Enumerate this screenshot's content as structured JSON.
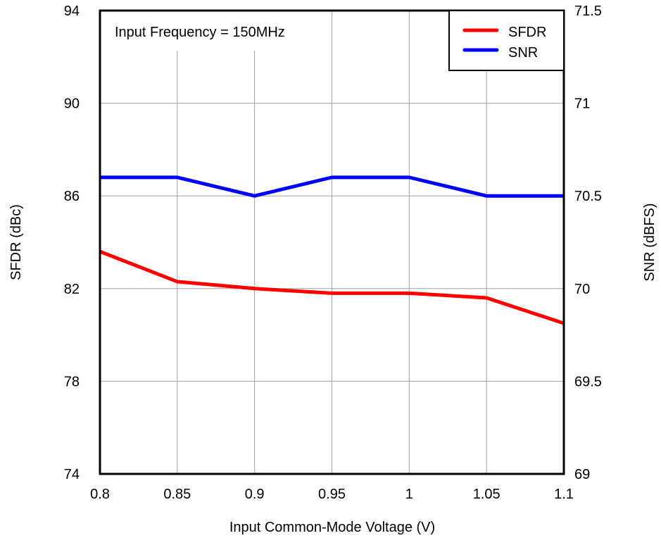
{
  "chart_data": {
    "type": "line",
    "title": "",
    "annotation": "Input Frequency = 150MHz",
    "xlabel": "Input Common-Mode Voltage (V)",
    "ylabel_left": "SFDR (dBc)",
    "ylabel_right": "SNR (dBFS)",
    "x": [
      0.8,
      0.85,
      0.9,
      0.95,
      1,
      1.05,
      1.1
    ],
    "x_tick_labels": [
      "0.8",
      "0.85",
      "0.9",
      "0.95",
      "1",
      "1.05",
      "1.1"
    ],
    "xlim": [
      0.8,
      1.1
    ],
    "ylim_left": [
      74,
      94
    ],
    "ylim_right": [
      69,
      71.5
    ],
    "y_left_tick_labels": [
      "74",
      "78",
      "82",
      "86",
      "90",
      "94"
    ],
    "y_left_ticks": [
      74,
      78,
      82,
      86,
      90,
      94
    ],
    "y_right_tick_labels": [
      "69",
      "69.5",
      "70",
      "70.5",
      "71",
      "71.5"
    ],
    "y_right_ticks": [
      69,
      69.5,
      70,
      70.5,
      71,
      71.5
    ],
    "grid": true,
    "legend_position": "top-right",
    "series": [
      {
        "name": "SFDR",
        "axis": "left",
        "color": "#ff0000",
        "values": [
          83.6,
          82.3,
          82.0,
          81.8,
          81.8,
          81.6,
          80.5
        ]
      },
      {
        "name": "SNR",
        "axis": "right",
        "color": "#0000ff",
        "values": [
          70.6,
          70.6,
          70.5,
          70.6,
          70.6,
          70.5,
          70.5
        ]
      }
    ]
  }
}
